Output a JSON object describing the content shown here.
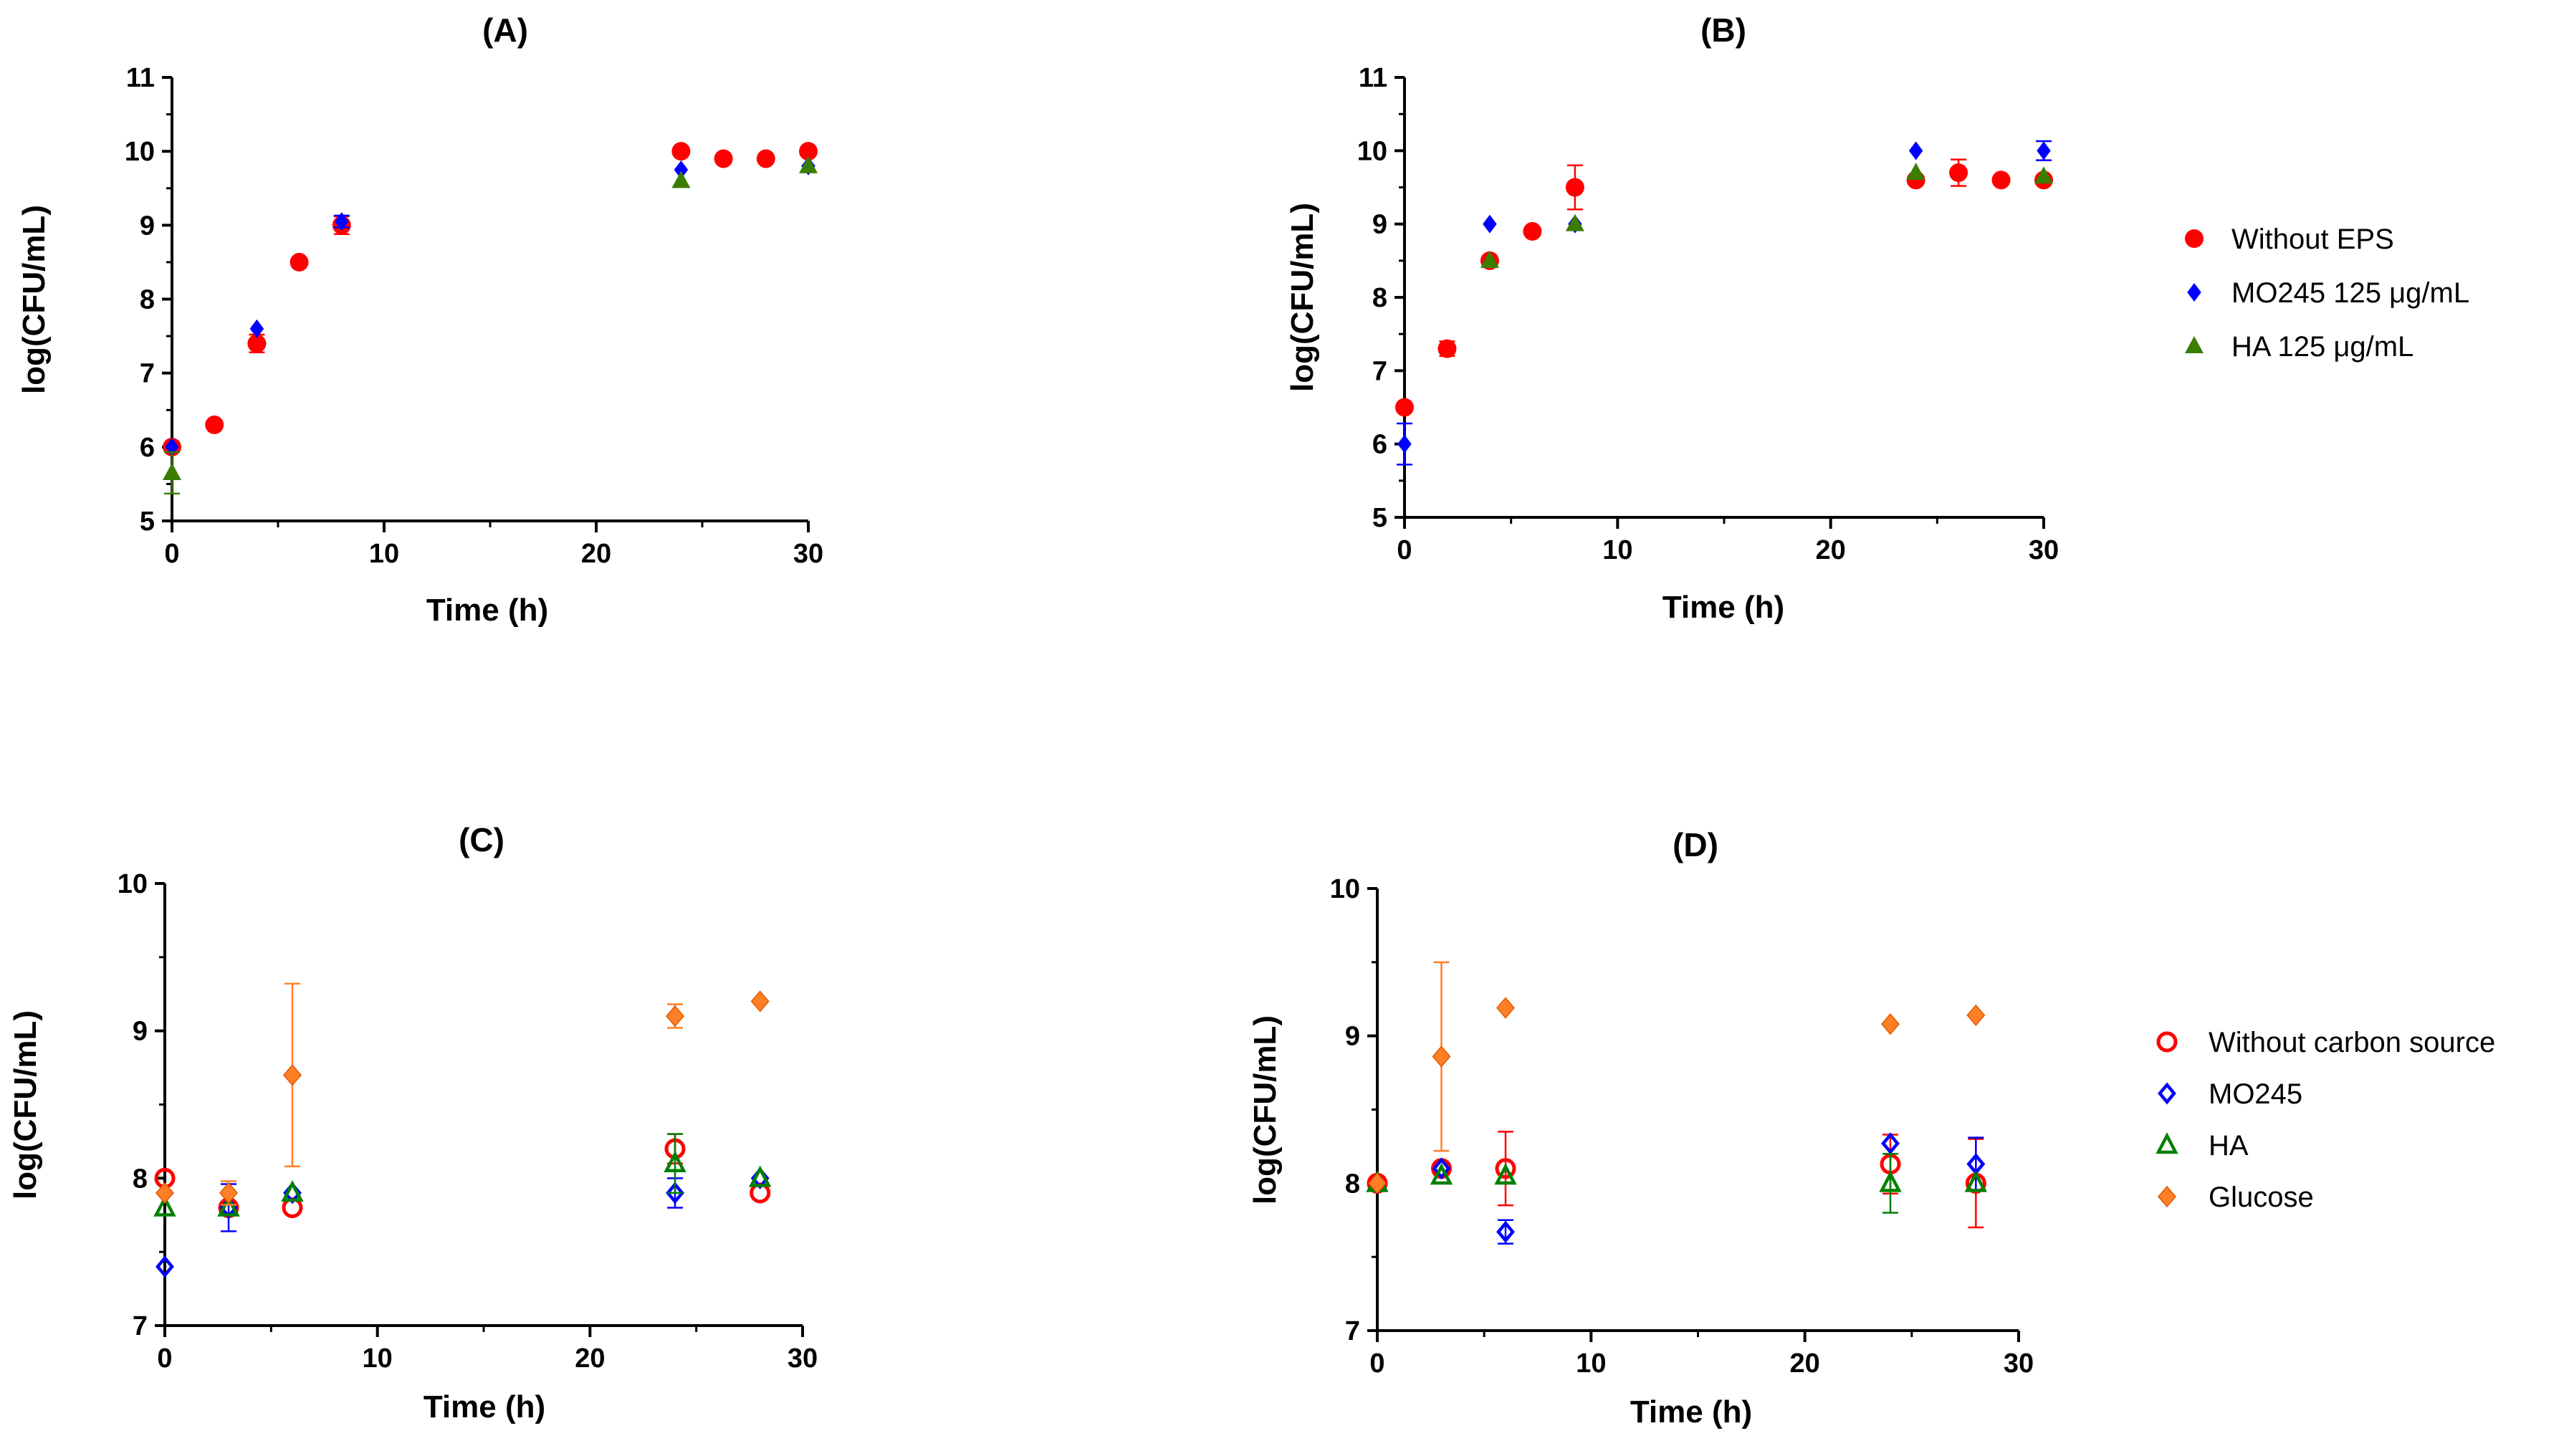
{
  "chart_data": [
    {
      "id": "A",
      "type": "scatter",
      "title": "(A)",
      "xlabel": "Time (h)",
      "ylabel": "log(CFU/mL)",
      "xlim": [
        0,
        30
      ],
      "ylim": [
        5,
        11
      ],
      "xticks": [
        "0",
        "10",
        "20",
        "30"
      ],
      "yticks": [
        "5",
        "6",
        "7",
        "8",
        "9",
        "10",
        "11"
      ],
      "grid": false,
      "series": [
        {
          "name": "Without EPS",
          "marker": "circle-filled",
          "color": "#ff0000",
          "points": [
            {
              "x": 0,
              "y": 6.0
            },
            {
              "x": 2,
              "y": 6.3
            },
            {
              "x": 4,
              "y": 7.4,
              "err": 0.12
            },
            {
              "x": 6,
              "y": 8.5
            },
            {
              "x": 8,
              "y": 9.0,
              "err": 0.12
            },
            {
              "x": 24,
              "y": 10.0
            },
            {
              "x": 26,
              "y": 9.9
            },
            {
              "x": 28,
              "y": 9.9
            },
            {
              "x": 30,
              "y": 10.0
            }
          ]
        },
        {
          "name": "MO245 125 μg/mL",
          "marker": "diamond-filled",
          "color": "#0000ff",
          "points": [
            {
              "x": 0,
              "y": 6.0
            },
            {
              "x": 4,
              "y": 7.6
            },
            {
              "x": 8,
              "y": 9.05,
              "err": 0.08
            },
            {
              "x": 24,
              "y": 9.75
            },
            {
              "x": 30,
              "y": 9.8
            }
          ]
        },
        {
          "name": "HA 125 μg/mL",
          "marker": "triangle-filled",
          "color": "#3a7d00",
          "points": [
            {
              "x": 0,
              "y": 5.65,
              "err": 0.28
            },
            {
              "x": 24,
              "y": 9.6
            },
            {
              "x": 30,
              "y": 9.8
            }
          ]
        }
      ]
    },
    {
      "id": "B",
      "type": "scatter",
      "title": "(B)",
      "xlabel": "Time (h)",
      "ylabel": "log(CFU/mL)",
      "xlim": [
        0,
        30
      ],
      "ylim": [
        5,
        11
      ],
      "xticks": [
        "0",
        "10",
        "20",
        "30"
      ],
      "yticks": [
        "5",
        "6",
        "7",
        "8",
        "9",
        "10",
        "11"
      ],
      "grid": false,
      "legend": "right",
      "series": [
        {
          "name": "Without EPS",
          "marker": "circle-filled",
          "color": "#ff0000",
          "points": [
            {
              "x": 0,
              "y": 6.5
            },
            {
              "x": 2,
              "y": 7.3,
              "err": 0.1
            },
            {
              "x": 4,
              "y": 8.5
            },
            {
              "x": 6,
              "y": 8.9
            },
            {
              "x": 8,
              "y": 9.5,
              "err": 0.3
            },
            {
              "x": 24,
              "y": 9.6
            },
            {
              "x": 26,
              "y": 9.7,
              "err": 0.18
            },
            {
              "x": 28,
              "y": 9.6
            },
            {
              "x": 30,
              "y": 9.6
            }
          ]
        },
        {
          "name": "MO245 125 μg/mL",
          "marker": "diamond-filled",
          "color": "#0000ff",
          "points": [
            {
              "x": 0,
              "y": 6.0,
              "err": 0.28
            },
            {
              "x": 4,
              "y": 9.0
            },
            {
              "x": 8,
              "y": 9.0
            },
            {
              "x": 24,
              "y": 10.0
            },
            {
              "x": 30,
              "y": 10.0,
              "err": 0.13
            }
          ]
        },
        {
          "name": "HA 125 μg/mL",
          "marker": "triangle-filled",
          "color": "#3a7d00",
          "points": [
            {
              "x": 4,
              "y": 8.5
            },
            {
              "x": 8,
              "y": 9.0
            },
            {
              "x": 24,
              "y": 9.7
            },
            {
              "x": 30,
              "y": 9.65
            }
          ]
        }
      ]
    },
    {
      "id": "C",
      "type": "scatter",
      "title": "(C)",
      "xlabel": "Time (h)",
      "ylabel": "log(CFU/mL)",
      "xlim": [
        0,
        30
      ],
      "ylim": [
        7,
        10
      ],
      "xticks": [
        "0",
        "10",
        "20",
        "30"
      ],
      "yticks": [
        "7",
        "8",
        "9",
        "10"
      ],
      "grid": false,
      "series": [
        {
          "name": "Without carbon source",
          "marker": "circle-open",
          "color": "#ff0000",
          "points": [
            {
              "x": 0,
              "y": 8.0
            },
            {
              "x": 3,
              "y": 7.8
            },
            {
              "x": 6,
              "y": 7.8
            },
            {
              "x": 24,
              "y": 8.2,
              "err": 0.1
            },
            {
              "x": 28,
              "y": 7.9
            }
          ]
        },
        {
          "name": "MO245",
          "marker": "diamond-open",
          "color": "#0000ff",
          "points": [
            {
              "x": 0,
              "y": 7.4
            },
            {
              "x": 3,
              "y": 7.8,
              "err": 0.16
            },
            {
              "x": 6,
              "y": 7.9
            },
            {
              "x": 24,
              "y": 7.9,
              "err": 0.1
            },
            {
              "x": 28,
              "y": 8.0
            }
          ]
        },
        {
          "name": "HA",
          "marker": "triangle-open",
          "color": "#008000",
          "points": [
            {
              "x": 0,
              "y": 7.8
            },
            {
              "x": 3,
              "y": 7.8
            },
            {
              "x": 6,
              "y": 7.9
            },
            {
              "x": 24,
              "y": 8.1,
              "err": 0.2
            },
            {
              "x": 28,
              "y": 8.0
            }
          ]
        },
        {
          "name": "Glucose",
          "marker": "diamond-orange",
          "color": "#ff7f27",
          "points": [
            {
              "x": 0,
              "y": 7.9
            },
            {
              "x": 3,
              "y": 7.9,
              "err": 0.08
            },
            {
              "x": 6,
              "y": 8.7,
              "err": 0.62
            },
            {
              "x": 24,
              "y": 9.1,
              "err": 0.08
            },
            {
              "x": 28,
              "y": 9.2
            }
          ]
        }
      ]
    },
    {
      "id": "D",
      "type": "scatter",
      "title": "(D)",
      "xlabel": "Time (h)",
      "ylabel": "log(CFU/mL)",
      "xlim": [
        0,
        30
      ],
      "ylim": [
        7,
        10
      ],
      "xticks": [
        "0",
        "10",
        "20",
        "30"
      ],
      "yticks": [
        "7",
        "8",
        "9",
        "10"
      ],
      "grid": false,
      "legend": "right",
      "series": [
        {
          "name": "Without carbon source",
          "marker": "circle-open",
          "color": "#ff0000",
          "points": [
            {
              "x": 0,
              "y": 8.0
            },
            {
              "x": 3,
              "y": 8.1
            },
            {
              "x": 6,
              "y": 8.1,
              "err": 0.25
            },
            {
              "x": 24,
              "y": 8.13,
              "err": 0.2
            },
            {
              "x": 28,
              "y": 8.0,
              "err": 0.3
            }
          ]
        },
        {
          "name": "MO245",
          "marker": "diamond-open",
          "color": "#0000ff",
          "points": [
            {
              "x": 0,
              "y": 8.0
            },
            {
              "x": 3,
              "y": 8.1
            },
            {
              "x": 6,
              "y": 7.67,
              "err": 0.08
            },
            {
              "x": 24,
              "y": 8.27
            },
            {
              "x": 28,
              "y": 8.13,
              "err": 0.18
            }
          ]
        },
        {
          "name": "HA",
          "marker": "triangle-open",
          "color": "#008000",
          "points": [
            {
              "x": 0,
              "y": 8.0
            },
            {
              "x": 3,
              "y": 8.05
            },
            {
              "x": 6,
              "y": 8.05
            },
            {
              "x": 24,
              "y": 8.0,
              "err": 0.2
            },
            {
              "x": 28,
              "y": 8.0
            }
          ]
        },
        {
          "name": "Glucose",
          "marker": "diamond-orange",
          "color": "#ff7f27",
          "points": [
            {
              "x": 0,
              "y": 8.0
            },
            {
              "x": 3,
              "y": 8.86,
              "err": 0.64
            },
            {
              "x": 6,
              "y": 9.19
            },
            {
              "x": 24,
              "y": 9.08
            },
            {
              "x": 28,
              "y": 9.14
            }
          ]
        }
      ]
    }
  ]
}
